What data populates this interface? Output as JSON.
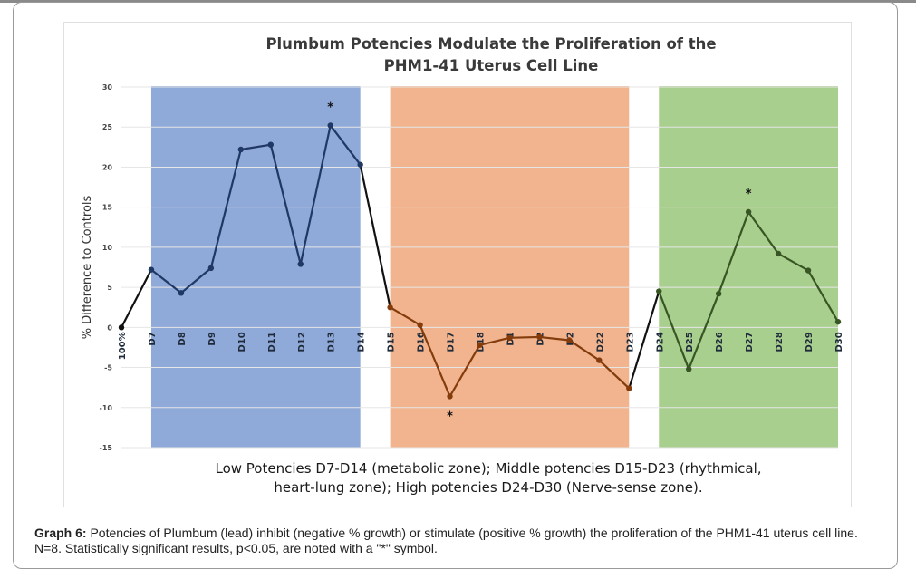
{
  "caption": {
    "label": "Graph 6:",
    "text": " Potencies of Plumbum (lead) inhibit (negative % growth) or stimulate (positive % growth) the proliferation of the PHM1-41 uterus cell line. N=8. Statistically significant results, p<0.05, are noted with a \"*\" symbol."
  },
  "chart_data": {
    "type": "line",
    "title": [
      "Plumbum Potencies Modulate the Proliferation of the",
      "PHM1-41 Uterus Cell Line"
    ],
    "ylabel": "% Difference to Controls",
    "xlabel": "",
    "ylim": [
      -15,
      30
    ],
    "yticks": [
      30,
      25,
      20,
      15,
      10,
      5,
      0,
      -5,
      -10,
      -15
    ],
    "grid": true,
    "categories": [
      "100%",
      "D7",
      "D8",
      "D9",
      "D10",
      "D11",
      "D12",
      "D13",
      "D14",
      "D15",
      "D16",
      "D17",
      "D18",
      "D19",
      "D20",
      "D21",
      "D22",
      "D23",
      "D24",
      "D25",
      "D26",
      "D27",
      "D28",
      "D29",
      "D30"
    ],
    "category_display": [
      "100%",
      "D7",
      "D8",
      "D9",
      "D10",
      "D11",
      "D12",
      "D13",
      "D14",
      "D15",
      "D16",
      "D17",
      "D18",
      "D1",
      "D2",
      "D2",
      "D22",
      "D23",
      "D24",
      "D25",
      "D26",
      "D27",
      "D28",
      "D29",
      "D30"
    ],
    "values": [
      0,
      7.2,
      4.3,
      7.4,
      22.2,
      22.8,
      7.9,
      25.2,
      20.3,
      2.5,
      0.3,
      -8.6,
      -2.2,
      -1.3,
      -1.2,
      -1.6,
      -4.1,
      -7.6,
      4.5,
      -5.2,
      4.2,
      14.4,
      9.2,
      7.1,
      0.7
    ],
    "significant": [
      "D13",
      "D17",
      "D27"
    ],
    "significance_symbol": "*",
    "zones": [
      {
        "from": "D7",
        "to": "D14",
        "color": "#8fa9d8",
        "line_color": "#1f3864"
      },
      {
        "from": "D15",
        "to": "D23",
        "color": "#f1b48e",
        "line_color": "#843c0c"
      },
      {
        "from": "D24",
        "to": "D30",
        "color": "#a9cf8e",
        "line_color": "#375623"
      }
    ],
    "transition_color": "#111111",
    "annotation": [
      "Low Potencies D7-D14 (metabolic zone); Middle potencies D15-D23 (rhythmical,",
      "heart-lung zone); High potencies D24-D30 (Nerve-sense zone)."
    ]
  }
}
